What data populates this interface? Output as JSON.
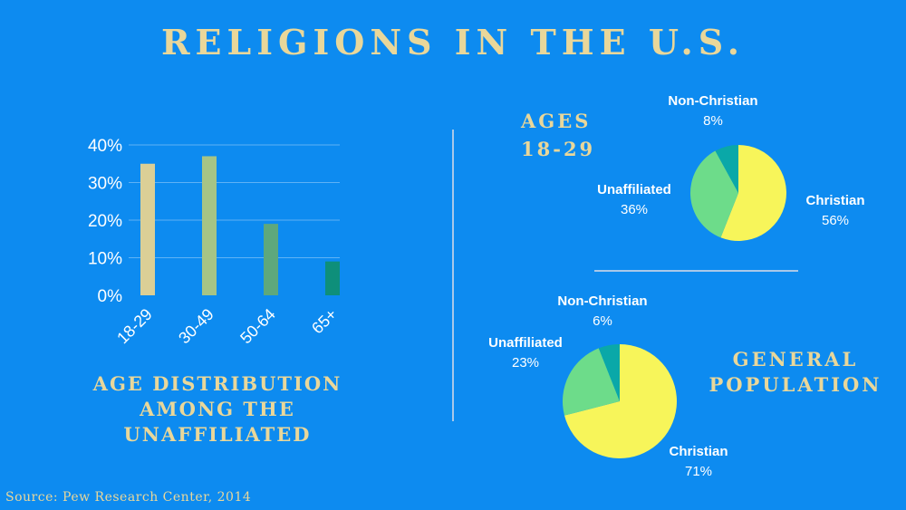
{
  "title": "RELIGIONS IN THE U.S.",
  "source": "Source: Pew Research Center, 2014",
  "colors": {
    "background": "#0d8bf0",
    "title_gold": "#e9d79a",
    "christian": "#f7f55a",
    "unaffiliated": "#6ddc8a",
    "non_christian": "#0aa8a8",
    "gridline": "#5fb2f5"
  },
  "chart_data": [
    {
      "type": "bar",
      "title": "AGE DISTRIBUTION AMONG THE UNAFFILIATED",
      "title_lines": [
        "AGE DISTRIBUTION",
        "AMONG THE",
        "UNAFFILIATED"
      ],
      "categories": [
        "18-29",
        "30-49",
        "50-64",
        "65+"
      ],
      "values": [
        35,
        37,
        19,
        9
      ],
      "bar_colors": [
        "#dbcf96",
        "#a6c486",
        "#5ea87c",
        "#0e8f7a"
      ],
      "ylim": [
        0,
        40
      ],
      "yticks": [
        "0%",
        "10%",
        "20%",
        "30%",
        "40%"
      ],
      "grid": true,
      "xlabel": "",
      "ylabel": ""
    },
    {
      "type": "pie",
      "title": "AGES 18-29",
      "title_lines": [
        "AGES",
        "18-29"
      ],
      "slices": [
        {
          "label": "Christian",
          "value": 56,
          "pct_label": "56%",
          "color": "#f7f55a"
        },
        {
          "label": "Unaffiliated",
          "value": 36,
          "pct_label": "36%",
          "color": "#6ddc8a"
        },
        {
          "label": "Non-Christian",
          "value": 8,
          "pct_label": "8%",
          "color": "#0aa8a8"
        }
      ]
    },
    {
      "type": "pie",
      "title": "GENERAL POPULATION",
      "title_lines": [
        "GENERAL",
        "POPULATION"
      ],
      "slices": [
        {
          "label": "Christian",
          "value": 71,
          "pct_label": "71%",
          "color": "#f7f55a"
        },
        {
          "label": "Unaffiliated",
          "value": 23,
          "pct_label": "23%",
          "color": "#6ddc8a"
        },
        {
          "label": "Non-Christian",
          "value": 6,
          "pct_label": "6%",
          "color": "#0aa8a8"
        }
      ]
    }
  ]
}
